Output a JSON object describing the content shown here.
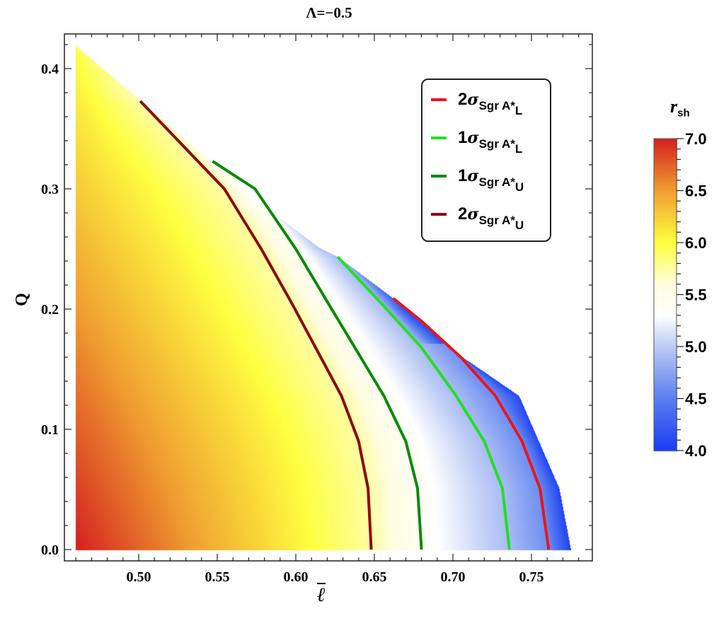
{
  "chart_data": {
    "type": "heatmap",
    "title": "Λ=−0.5",
    "xlabel": "ℓ",
    "ylabel": "Q",
    "xlim": [
      0.4527,
      0.787
    ],
    "ylim": [
      -0.0094,
      0.429
    ],
    "xticks": [
      "0.50",
      "0.55",
      "0.60",
      "0.65",
      "0.70",
      "0.75"
    ],
    "yticks": [
      "0.0",
      "0.1",
      "0.2",
      "0.3",
      "0.4"
    ],
    "colorbar": {
      "label": "r",
      "label_sub": "sh",
      "range": [
        4.0,
        7.0
      ],
      "ticks": [
        "4.0",
        "4.5",
        "5.0",
        "5.5",
        "6.0",
        "6.5",
        "7.0"
      ],
      "colors": [
        [
          4.0,
          "#1a3cf5"
        ],
        [
          4.5,
          "#5a7ef0"
        ],
        [
          5.0,
          "#bccbf5"
        ],
        [
          5.3,
          "#ffffff"
        ],
        [
          5.6,
          "#fffde0"
        ],
        [
          6.0,
          "#ffff40"
        ],
        [
          6.5,
          "#f0a030"
        ],
        [
          7.0,
          "#d42020"
        ]
      ]
    },
    "region_boundary": [
      [
        0.46,
        0.419
      ],
      [
        0.5865,
        0.279
      ],
      [
        0.614,
        0.252
      ],
      [
        0.627,
        0.2435
      ],
      [
        0.662,
        0.209
      ],
      [
        0.703,
        0.163
      ],
      [
        0.742,
        0.128
      ],
      [
        0.7676,
        0.051
      ],
      [
        0.775,
        0.0
      ]
    ],
    "series": [
      {
        "name": "2σ Sgr A* L",
        "label": {
          "prefix": "2σ",
          "sub": "Sgr A*",
          "subsub": "L"
        },
        "color": "#e8161c",
        "points": [
          [
            0.662,
            0.209
          ],
          [
            0.68,
            0.19
          ],
          [
            0.705,
            0.16
          ],
          [
            0.727,
            0.128
          ],
          [
            0.744,
            0.09
          ],
          [
            0.7554,
            0.051
          ],
          [
            0.761,
            0.0
          ]
        ]
      },
      {
        "name": "1σ Sgr A* L",
        "label": {
          "prefix": "1σ",
          "sub": "Sgr A*",
          "subsub": "L"
        },
        "color": "#22e022",
        "points": [
          [
            0.6266,
            0.2435
          ],
          [
            0.655,
            0.204
          ],
          [
            0.68,
            0.168
          ],
          [
            0.702,
            0.128
          ],
          [
            0.72,
            0.09
          ],
          [
            0.7315,
            0.051
          ],
          [
            0.736,
            0.0
          ]
        ]
      },
      {
        "name": "1σ Sgr A* U",
        "label": {
          "prefix": "1σ",
          "sub": "Sgr A*",
          "subsub": "U"
        },
        "color": "#0a8a0a",
        "points": [
          [
            0.547,
            0.323
          ],
          [
            0.574,
            0.3
          ],
          [
            0.6,
            0.25
          ],
          [
            0.621,
            0.204
          ],
          [
            0.656,
            0.128
          ],
          [
            0.67,
            0.09
          ],
          [
            0.6775,
            0.051
          ],
          [
            0.68,
            0.0
          ]
        ]
      },
      {
        "name": "2σ Sgr A* U",
        "label": {
          "prefix": "2σ",
          "sub": "Sgr A*",
          "subsub": "U"
        },
        "color": "#8b0a0a",
        "points": [
          [
            0.501,
            0.373
          ],
          [
            0.5545,
            0.3
          ],
          [
            0.578,
            0.25
          ],
          [
            0.5978,
            0.204
          ],
          [
            0.629,
            0.128
          ],
          [
            0.64,
            0.09
          ],
          [
            0.646,
            0.051
          ],
          [
            0.648,
            0.0
          ]
        ]
      }
    ],
    "legend_placement": "top-right",
    "grid": false
  }
}
